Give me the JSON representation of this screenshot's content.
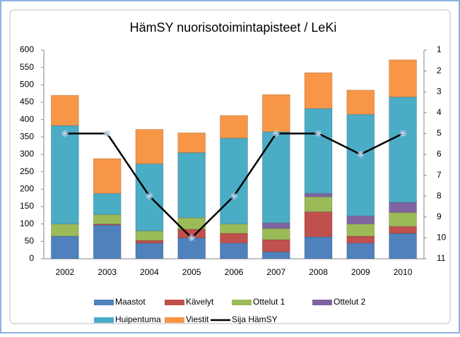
{
  "chart_data": {
    "type": "bar",
    "stacked": true,
    "title": "HämSY nuorisotoimintapisteet / LeKi",
    "categories": [
      "2002",
      "2003",
      "2004",
      "2005",
      "2006",
      "2007",
      "2008",
      "2009",
      "2010"
    ],
    "series": [
      {
        "name": "Maastot",
        "color": "#4f81bd",
        "values": [
          65,
          97,
          45,
          60,
          45,
          20,
          63,
          45,
          73
        ]
      },
      {
        "name": "Kävelyt",
        "color": "#c0504d",
        "values": [
          0,
          3,
          8,
          25,
          28,
          35,
          72,
          20,
          20
        ]
      },
      {
        "name": "Ottelut 1",
        "color": "#9bbb59",
        "values": [
          35,
          27,
          27,
          33,
          27,
          32,
          43,
          35,
          40
        ]
      },
      {
        "name": "Ottelut 2",
        "color": "#8064a2",
        "values": [
          0,
          0,
          0,
          0,
          0,
          16,
          10,
          23,
          29
        ]
      },
      {
        "name": "Huipentuma",
        "color": "#4bacc6",
        "values": [
          283,
          61,
          193,
          187,
          247,
          262,
          244,
          292,
          303
        ]
      },
      {
        "name": "Viestit",
        "color": "#f79646",
        "values": [
          87,
          100,
          99,
          57,
          65,
          107,
          103,
          70,
          107
        ]
      },
      {
        "name": "Sija HämSY",
        "color": "#000000",
        "type": "line",
        "axis": "y2",
        "values": [
          5,
          5,
          8,
          10,
          8,
          5,
          5,
          6,
          5
        ]
      }
    ],
    "ylim": [
      0,
      600
    ],
    "yticks": [
      0,
      50,
      100,
      150,
      200,
      250,
      300,
      350,
      400,
      450,
      500,
      550,
      600
    ],
    "y2lim": [
      1,
      11
    ],
    "y2_reversed": true,
    "y2ticks": [
      1,
      2,
      3,
      4,
      5,
      6,
      7,
      8,
      9,
      10,
      11
    ],
    "grid": false,
    "legend": "bottom"
  }
}
